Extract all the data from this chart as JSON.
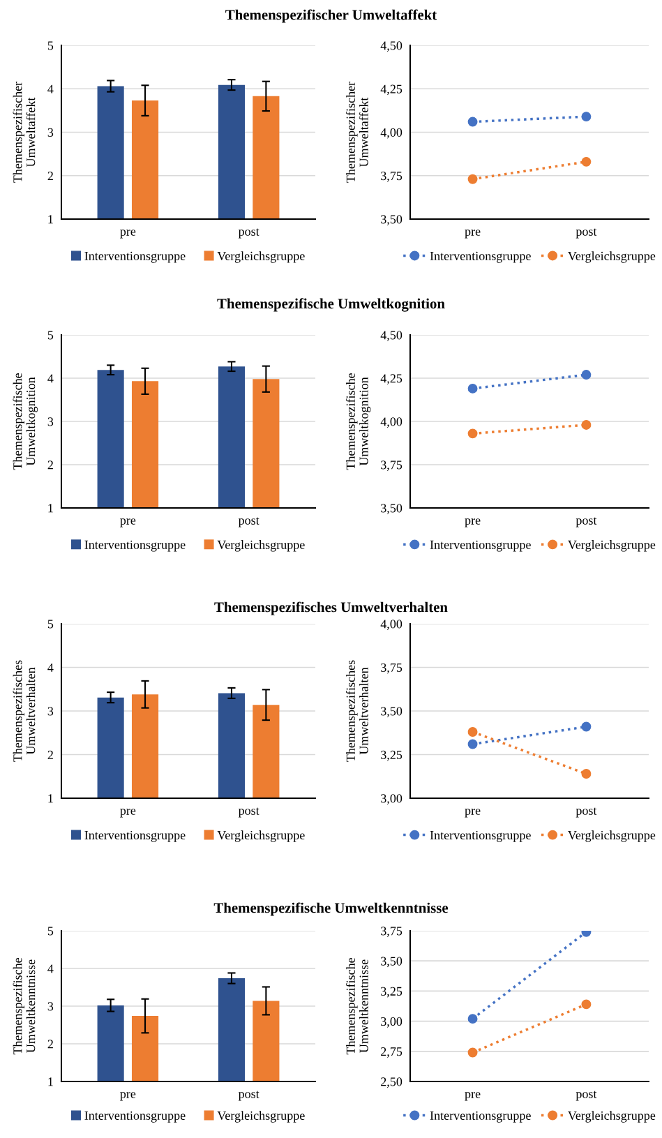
{
  "chart_data": [
    {
      "type": "bar",
      "title": "Themenspezifischer Umweltaffekt",
      "ylabel": "Themenspezifischer\nUmweltaffekt",
      "categories": [
        "pre",
        "post"
      ],
      "ylim": [
        1,
        5
      ],
      "yticks": [
        1,
        2,
        3,
        4,
        5
      ],
      "grid": "y",
      "legend": "bottom",
      "series": [
        {
          "name": "Interventionsgruppe",
          "color": "#2f528f",
          "values": [
            4.06,
            4.09
          ],
          "errors": [
            0.13,
            0.12
          ]
        },
        {
          "name": "Vergleichsgruppe",
          "color": "#ed7d31",
          "values": [
            3.73,
            3.83
          ],
          "errors": [
            0.35,
            0.34
          ]
        }
      ]
    },
    {
      "type": "line",
      "ylabel": "Themenspezifischer\nUmweltaffekt",
      "categories": [
        "pre",
        "post"
      ],
      "ylim": [
        3.5,
        4.5
      ],
      "yticks": [
        {
          "value": 3.5,
          "label": "3,50"
        },
        {
          "value": 3.75,
          "label": "3,75"
        },
        {
          "value": 4.0,
          "label": "4,00"
        },
        {
          "value": 4.25,
          "label": "4,25"
        },
        {
          "value": 4.5,
          "label": "4,50"
        }
      ],
      "grid": "y",
      "legend": "bottom",
      "marker": "circle",
      "line_style": "dotted",
      "series": [
        {
          "name": "Interventionsgruppe",
          "color": "#4472c4",
          "values": [
            4.06,
            4.09
          ]
        },
        {
          "name": "Vergleichsgruppe",
          "color": "#ed7d31",
          "values": [
            3.73,
            3.83
          ]
        }
      ]
    },
    {
      "type": "bar",
      "title": "Themenspezifische Umweltkognition",
      "ylabel": "Themenspezifische\nUmweltkognition",
      "categories": [
        "pre",
        "post"
      ],
      "ylim": [
        1,
        5
      ],
      "yticks": [
        1,
        2,
        3,
        4,
        5
      ],
      "grid": "y",
      "legend": "bottom",
      "series": [
        {
          "name": "Interventionsgruppe",
          "color": "#2f528f",
          "values": [
            4.19,
            4.27
          ],
          "errors": [
            0.11,
            0.11
          ]
        },
        {
          "name": "Vergleichsgruppe",
          "color": "#ed7d31",
          "values": [
            3.93,
            3.98
          ],
          "errors": [
            0.3,
            0.3
          ]
        }
      ]
    },
    {
      "type": "line",
      "ylabel": "Themenspezifische\nUmweltkognition",
      "categories": [
        "pre",
        "post"
      ],
      "ylim": [
        3.5,
        4.5
      ],
      "yticks": [
        {
          "value": 3.5,
          "label": "3,50"
        },
        {
          "value": 3.75,
          "label": "3,75"
        },
        {
          "value": 4.0,
          "label": "4,00"
        },
        {
          "value": 4.25,
          "label": "4,25"
        },
        {
          "value": 4.5,
          "label": "4,50"
        }
      ],
      "grid": "y",
      "legend": "bottom",
      "marker": "circle",
      "line_style": "dotted",
      "series": [
        {
          "name": "Interventionsgruppe",
          "color": "#4472c4",
          "values": [
            4.19,
            4.27
          ]
        },
        {
          "name": "Vergleichsgruppe",
          "color": "#ed7d31",
          "values": [
            3.93,
            3.98
          ]
        }
      ]
    },
    {
      "type": "bar",
      "title": "Themenspezifisches Umweltverhalten",
      "ylabel": "Themenspezifisches\nUmweltverhalten",
      "categories": [
        "pre",
        "post"
      ],
      "ylim": [
        1,
        5
      ],
      "yticks": [
        1,
        2,
        3,
        4,
        5
      ],
      "grid": "y",
      "legend": "bottom",
      "series": [
        {
          "name": "Interventionsgruppe",
          "color": "#2f528f",
          "values": [
            3.31,
            3.41
          ],
          "errors": [
            0.12,
            0.12
          ]
        },
        {
          "name": "Vergleichsgruppe",
          "color": "#ed7d31",
          "values": [
            3.38,
            3.14
          ],
          "errors": [
            0.31,
            0.35
          ]
        }
      ]
    },
    {
      "type": "line",
      "ylabel": "Themenspezifisches\nUmweltverhalten",
      "categories": [
        "pre",
        "post"
      ],
      "ylim": [
        3.0,
        4.0
      ],
      "yticks": [
        {
          "value": 3.0,
          "label": "3,00"
        },
        {
          "value": 3.25,
          "label": "3,25"
        },
        {
          "value": 3.5,
          "label": "3,50"
        },
        {
          "value": 3.75,
          "label": "3,75"
        },
        {
          "value": 4.0,
          "label": "4,00"
        }
      ],
      "grid": "y",
      "legend": "bottom",
      "marker": "circle",
      "line_style": "dotted",
      "series": [
        {
          "name": "Interventionsgruppe",
          "color": "#4472c4",
          "values": [
            3.31,
            3.41
          ]
        },
        {
          "name": "Vergleichsgruppe",
          "color": "#ed7d31",
          "values": [
            3.38,
            3.14
          ]
        }
      ]
    },
    {
      "type": "bar",
      "title": "Themenspezifische Umweltkenntnisse",
      "ylabel": "Themenspezifische\nUmweltkenntnisse",
      "categories": [
        "pre",
        "post"
      ],
      "ylim": [
        1,
        5
      ],
      "yticks": [
        1,
        2,
        3,
        4,
        5
      ],
      "grid": "y",
      "legend": "bottom",
      "series": [
        {
          "name": "Interventionsgruppe",
          "color": "#2f528f",
          "values": [
            3.02,
            3.74
          ],
          "errors": [
            0.16,
            0.14
          ]
        },
        {
          "name": "Vergleichsgruppe",
          "color": "#ed7d31",
          "values": [
            2.74,
            3.14
          ],
          "errors": [
            0.45,
            0.37
          ]
        }
      ]
    },
    {
      "type": "line",
      "ylabel": "Themenspezifische\nUmweltkenntnisse",
      "categories": [
        "pre",
        "post"
      ],
      "ylim": [
        2.5,
        3.75
      ],
      "yticks": [
        {
          "value": 2.5,
          "label": "2,50"
        },
        {
          "value": 2.75,
          "label": "2,75"
        },
        {
          "value": 3.0,
          "label": "3,00"
        },
        {
          "value": 3.25,
          "label": "3,25"
        },
        {
          "value": 3.5,
          "label": "3,50"
        },
        {
          "value": 3.75,
          "label": "3,75"
        }
      ],
      "grid": "y",
      "legend": "bottom",
      "marker": "circle",
      "line_style": "dotted",
      "series": [
        {
          "name": "Interventionsgruppe",
          "color": "#4472c4",
          "values": [
            3.02,
            3.74
          ]
        },
        {
          "name": "Vergleichsgruppe",
          "color": "#ed7d31",
          "values": [
            2.74,
            3.14
          ]
        }
      ]
    }
  ]
}
